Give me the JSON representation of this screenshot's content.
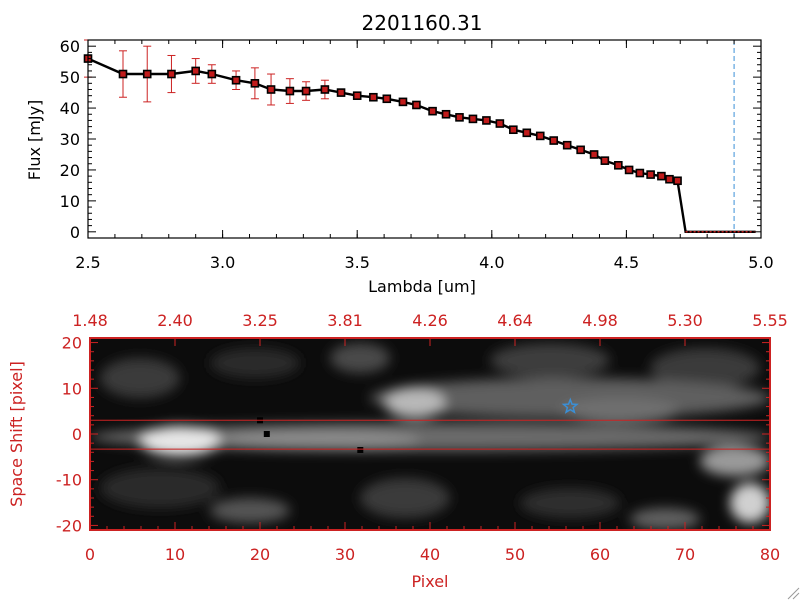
{
  "chart_data": [
    {
      "type": "line",
      "title": "2201160.31",
      "xlabel": "Lambda [um]",
      "ylabel": "Flux [mJy]",
      "xlim": [
        2.5,
        5.0
      ],
      "ylim": [
        -2,
        62
      ],
      "x_ticks": [
        "2.5",
        "3.0",
        "3.5",
        "4.0",
        "4.5",
        "5.0"
      ],
      "y_ticks": [
        "0",
        "10",
        "20",
        "30",
        "40",
        "50",
        "60"
      ],
      "vline_x": 4.9,
      "colors": {
        "line": "#000000",
        "marker": "#c11b1b",
        "error": "#cc2222",
        "vline": "#3a8fd6"
      },
      "series": [
        {
          "x": [
            2.5,
            2.63,
            2.72,
            2.81,
            2.9,
            2.96,
            3.05,
            3.12,
            3.18,
            3.25,
            3.31,
            3.38,
            3.44,
            3.5,
            3.56,
            3.61,
            3.67,
            3.72,
            3.78,
            3.83,
            3.88,
            3.93,
            3.98,
            4.03,
            4.08,
            4.13,
            4.18,
            4.23,
            4.28,
            4.33,
            4.38,
            4.42,
            4.47,
            4.51,
            4.55,
            4.59,
            4.63,
            4.66,
            4.69,
            4.72,
            4.76,
            4.82,
            4.88,
            4.93,
            4.98
          ],
          "y": [
            56,
            51,
            51,
            51,
            52,
            51,
            49,
            48,
            46,
            45.5,
            45.5,
            46,
            45,
            44,
            43.5,
            43,
            42,
            41,
            39,
            38,
            37,
            36.5,
            36,
            35,
            33,
            32,
            31,
            29.5,
            28,
            26.5,
            25,
            23,
            21.5,
            20,
            19,
            18.5,
            18,
            17,
            16.5,
            0,
            0,
            0,
            0,
            0,
            0
          ],
          "err": [
            6,
            7.5,
            9,
            6,
            4,
            3,
            3,
            5,
            5,
            4,
            3,
            3,
            1,
            0,
            0,
            0,
            0,
            0,
            0,
            0,
            0,
            0,
            0,
            0,
            0,
            0,
            0,
            0,
            0,
            0,
            0,
            0,
            0,
            0,
            0,
            0,
            0,
            0,
            0,
            0,
            0,
            0,
            0,
            0,
            0
          ]
        }
      ]
    },
    {
      "type": "heatmap",
      "xlabel": "Pixel",
      "ylabel": "Space Shift [pixel]",
      "xlim": [
        0,
        80
      ],
      "ylim": [
        -21,
        21
      ],
      "x_ticks": [
        "0",
        "10",
        "20",
        "30",
        "40",
        "50",
        "60",
        "70",
        "80"
      ],
      "y_ticks": [
        "-20",
        "-10",
        "0",
        "10",
        "20"
      ],
      "top_ticks": [
        "1.48",
        "2.40",
        "3.25",
        "3.81",
        "4.26",
        "4.64",
        "4.98",
        "5.30",
        "5.55"
      ],
      "hlines_y": [
        3,
        -3.3
      ],
      "star": {
        "x": 56.5,
        "y": 6
      },
      "colors": {
        "axis": "#cc2222",
        "star": "#3a8fd6",
        "hline": "#cc2222"
      }
    }
  ]
}
